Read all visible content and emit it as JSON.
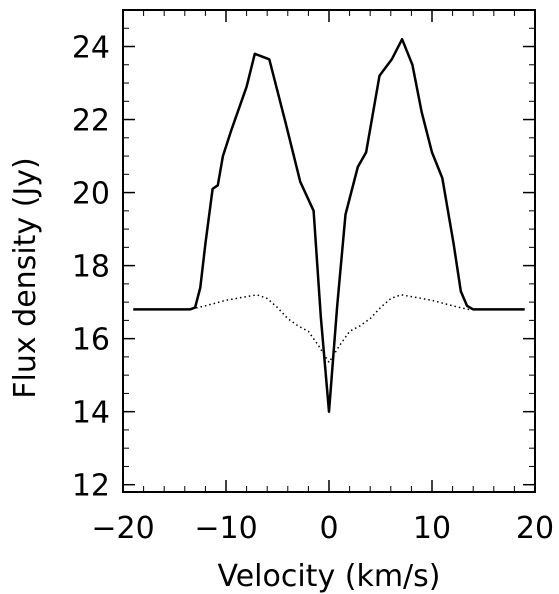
{
  "chart_data": {
    "type": "line",
    "title": "",
    "xlabel": "Velocity (km/s)",
    "ylabel": "Flux density (Jy)",
    "xlim": [
      -20,
      20
    ],
    "ylim": [
      11.8,
      25.0
    ],
    "x_ticks": [
      -20,
      -10,
      0,
      10,
      20
    ],
    "x_tick_labels": [
      "−20",
      "−10",
      "0",
      "10",
      "20"
    ],
    "y_ticks": [
      12,
      14,
      16,
      18,
      20,
      22,
      24
    ],
    "y_tick_labels": [
      "12",
      "14",
      "16",
      "18",
      "20",
      "22",
      "24"
    ],
    "grid": false,
    "series": [
      {
        "style": "solid",
        "color": "#000000",
        "x": [
          -19,
          -13.5,
          -13,
          -12.5,
          -12,
          -11.3,
          -10.8,
          -10.3,
          -9.5,
          -8,
          -7.2,
          -5.8,
          -4.2,
          -2.8,
          -1.5,
          -0.8,
          0,
          0.8,
          1.6,
          2.8,
          3.6,
          4.9,
          6.1,
          7.1,
          8.1,
          9.0,
          10.0,
          11.0,
          12.1,
          12.8,
          13.4,
          14,
          19
        ],
        "y": [
          16.8,
          16.8,
          16.85,
          17.4,
          18.6,
          20.1,
          20.2,
          21.0,
          21.7,
          22.9,
          23.8,
          23.65,
          21.9,
          20.3,
          19.5,
          16.6,
          14.0,
          16.9,
          19.4,
          20.7,
          21.1,
          23.2,
          23.65,
          24.2,
          23.5,
          22.2,
          21.1,
          20.4,
          18.6,
          17.3,
          16.9,
          16.8,
          16.8
        ]
      },
      {
        "style": "dotted",
        "color": "#000000",
        "x": [
          -19,
          -13.5,
          -12,
          -10,
          -8,
          -7,
          -6,
          -5,
          -4,
          -3,
          -2,
          -1,
          0,
          1,
          2,
          3,
          4,
          5,
          6,
          7,
          8,
          10,
          12,
          13.5,
          19
        ],
        "y": [
          16.8,
          16.8,
          16.9,
          17.05,
          17.15,
          17.2,
          17.1,
          16.85,
          16.55,
          16.35,
          16.2,
          15.8,
          15.35,
          15.8,
          16.2,
          16.35,
          16.55,
          16.85,
          17.1,
          17.2,
          17.15,
          17.05,
          16.9,
          16.8,
          16.8
        ]
      }
    ]
  }
}
